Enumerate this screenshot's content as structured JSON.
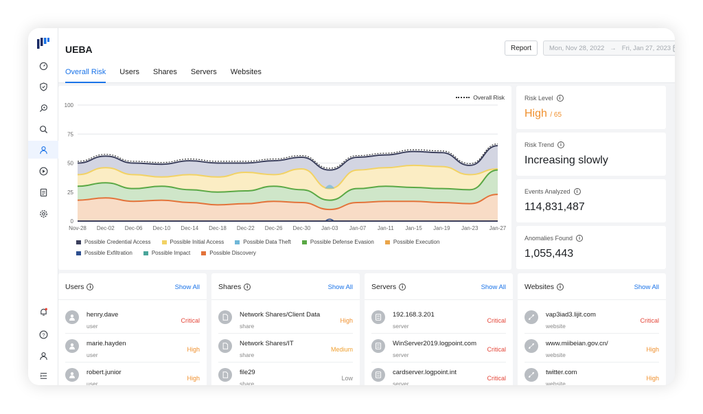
{
  "app": {
    "title": "UEBA"
  },
  "header": {
    "report_label": "Report",
    "date_start": "Mon, Nov 28, 2022",
    "date_arrow": "→",
    "date_end": "Fri, Jan 27, 2023"
  },
  "tabs": [
    {
      "label": "Overall Risk",
      "active": true
    },
    {
      "label": "Users"
    },
    {
      "label": "Shares"
    },
    {
      "label": "Servers"
    },
    {
      "label": "Websites"
    }
  ],
  "sidebar": {
    "icons": [
      "dashboard-icon",
      "shield-icon",
      "search-zoom-icon",
      "search-icon",
      "user-icon",
      "play-icon",
      "report-icon",
      "settings-icon"
    ],
    "bottom_icons": [
      "bell-icon",
      "help-icon",
      "profile-icon",
      "menu-icon"
    ],
    "active": "user-icon"
  },
  "chart_data": {
    "type": "area",
    "legend_overall": "Overall Risk",
    "x": [
      "Nov-28",
      "Dec-02",
      "Dec-06",
      "Dec-10",
      "Dec-14",
      "Dec-18",
      "Dec-22",
      "Dec-26",
      "Dec-30",
      "Jan-03",
      "Jan-07",
      "Jan-11",
      "Jan-15",
      "Jan-19",
      "Jan-23",
      "Jan-27"
    ],
    "ylim": [
      0,
      100
    ],
    "yticks": [
      "0",
      "25",
      "50",
      "75",
      "100"
    ],
    "grid": true,
    "series": [
      {
        "name": "Possible Credential Access",
        "color": "#3b3f5c",
        "values": [
          50,
          56,
          50,
          49,
          52,
          50,
          50,
          52,
          55,
          44,
          55,
          57,
          60,
          59,
          48,
          65
        ]
      },
      {
        "name": "Possible Initial Access",
        "color": "#f2d264",
        "values": [
          40,
          46,
          40,
          38,
          40,
          38,
          42,
          40,
          45,
          28,
          44,
          46,
          48,
          47,
          40,
          45
        ]
      },
      {
        "name": "Possible Data Theft",
        "color": "#6fb7d8",
        "values": [
          0,
          0,
          0,
          0,
          0,
          0,
          0,
          0,
          0,
          32,
          0,
          0,
          0,
          0,
          0,
          0
        ]
      },
      {
        "name": "Possible Defense Evasion",
        "color": "#5aa845",
        "values": [
          30,
          33,
          28,
          30,
          27,
          25,
          26,
          30,
          27,
          18,
          28,
          30,
          29,
          28,
          27,
          44
        ]
      },
      {
        "name": "Possible Execution",
        "color": "#eaa54a",
        "values": [
          0,
          0,
          0,
          0,
          0,
          0,
          0,
          0,
          0,
          0,
          0,
          0,
          0,
          0,
          0,
          0
        ]
      },
      {
        "name": "Possible Exfiltration",
        "color": "#2d4f8f",
        "values": [
          0,
          0,
          0,
          0,
          0,
          0,
          0,
          0,
          0,
          2,
          0,
          0,
          0,
          0,
          0,
          0
        ]
      },
      {
        "name": "Possible Impact",
        "color": "#4aa59a",
        "values": [
          0,
          0,
          0,
          0,
          0,
          0,
          0,
          0,
          0,
          0,
          0,
          0,
          0,
          0,
          0,
          0
        ]
      },
      {
        "name": "Possible Discovery",
        "color": "#e3733a",
        "values": [
          18,
          20,
          17,
          18,
          16,
          14,
          15,
          17,
          16,
          10,
          16,
          17,
          17,
          16,
          15,
          23
        ]
      }
    ]
  },
  "stats": [
    {
      "label": "Risk Level",
      "value": "High",
      "suffix": "/ 65",
      "style": "high"
    },
    {
      "label": "Risk Trend",
      "value": "Increasing slowly"
    },
    {
      "label": "Events Analyzed",
      "value": "114,831,487"
    },
    {
      "label": "Anomalies Found",
      "value": "1,055,443"
    }
  ],
  "lists": [
    {
      "title": "Users",
      "show_all": "Show All",
      "icon": "user-icon",
      "rows": [
        {
          "name": "henry.dave",
          "type": "user",
          "severity": "Critical",
          "level": "critical"
        },
        {
          "name": "marie.hayden",
          "type": "user",
          "severity": "High",
          "level": "high"
        },
        {
          "name": "robert.junior",
          "type": "user",
          "severity": "High",
          "level": "high"
        }
      ]
    },
    {
      "title": "Shares",
      "show_all": "Show All",
      "icon": "file-icon",
      "rows": [
        {
          "name": "Network Shares/Client Data",
          "type": "share",
          "severity": "High",
          "level": "high"
        },
        {
          "name": "Network Shares/IT",
          "type": "share",
          "severity": "Medium",
          "level": "medium"
        },
        {
          "name": "file29",
          "type": "share",
          "severity": "Low",
          "level": "low"
        }
      ]
    },
    {
      "title": "Servers",
      "show_all": "Show All",
      "icon": "server-icon",
      "rows": [
        {
          "name": "192.168.3.201",
          "type": "server",
          "severity": "Critical",
          "level": "critical"
        },
        {
          "name": "WinServer2019.logpoint.com",
          "type": "server",
          "severity": "Critical",
          "level": "critical"
        },
        {
          "name": "cardserver.logpoint.int",
          "type": "server",
          "severity": "Critical",
          "level": "critical"
        }
      ]
    },
    {
      "title": "Websites",
      "show_all": "Show All",
      "icon": "link-icon",
      "rows": [
        {
          "name": "vap3iad3.lijit.com",
          "type": "website",
          "severity": "Critical",
          "level": "critical"
        },
        {
          "name": "www.miibeian.gov.cn/",
          "type": "website",
          "severity": "High",
          "level": "high"
        },
        {
          "name": "twitter.com",
          "type": "website",
          "severity": "High",
          "level": "high"
        }
      ]
    }
  ]
}
